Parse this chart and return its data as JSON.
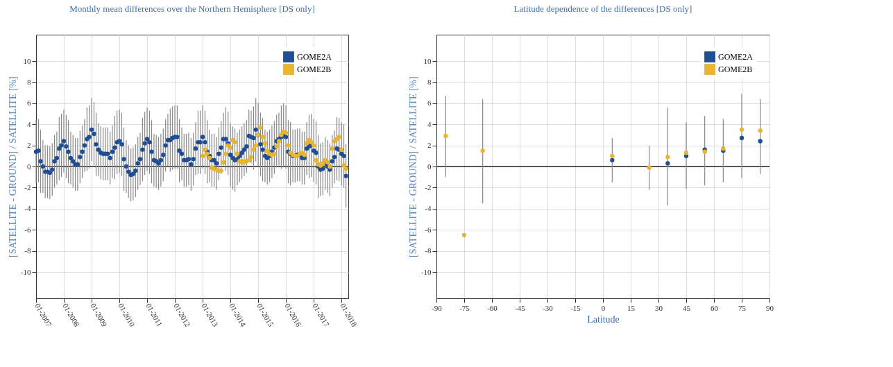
{
  "chart_data": [
    {
      "type": "scatter",
      "title": "Monthly mean differences over the Northern Hemisphere [DS only]",
      "ylabel": "[SATELLITE - GROUND] / SATELLITE [%]",
      "x": [
        "2007-01",
        "2007-02",
        "2007-03",
        "2007-04",
        "2007-05",
        "2007-06",
        "2007-07",
        "2007-08",
        "2007-09",
        "2007-10",
        "2007-11",
        "2007-12",
        "2008-01",
        "2008-02",
        "2008-03",
        "2008-04",
        "2008-05",
        "2008-06",
        "2008-07",
        "2008-08",
        "2008-09",
        "2008-10",
        "2008-11",
        "2008-12",
        "2009-01",
        "2009-02",
        "2009-03",
        "2009-04",
        "2009-05",
        "2009-06",
        "2009-07",
        "2009-08",
        "2009-09",
        "2009-10",
        "2009-11",
        "2009-12",
        "2010-01",
        "2010-02",
        "2010-03",
        "2010-04",
        "2010-05",
        "2010-06",
        "2010-07",
        "2010-08",
        "2010-09",
        "2010-10",
        "2010-11",
        "2010-12",
        "2011-01",
        "2011-02",
        "2011-03",
        "2011-04",
        "2011-05",
        "2011-06",
        "2011-07",
        "2011-08",
        "2011-09",
        "2011-10",
        "2011-11",
        "2011-12",
        "2012-01",
        "2012-02",
        "2012-03",
        "2012-04",
        "2012-05",
        "2012-06",
        "2012-07",
        "2012-08",
        "2012-09",
        "2012-10",
        "2012-11",
        "2012-12",
        "2013-01",
        "2013-02",
        "2013-03",
        "2013-04",
        "2013-05",
        "2013-06",
        "2013-07",
        "2013-08",
        "2013-09",
        "2013-10",
        "2013-11",
        "2013-12",
        "2014-01",
        "2014-02",
        "2014-03",
        "2014-04",
        "2014-05",
        "2014-06",
        "2014-07",
        "2014-08",
        "2014-09",
        "2014-10",
        "2014-11",
        "2014-12",
        "2015-01",
        "2015-02",
        "2015-03",
        "2015-04",
        "2015-05",
        "2015-06",
        "2015-07",
        "2015-08",
        "2015-09",
        "2015-10",
        "2015-11",
        "2015-12",
        "2016-01",
        "2016-02",
        "2016-03",
        "2016-04",
        "2016-05",
        "2016-06",
        "2016-07",
        "2016-08",
        "2016-09",
        "2016-10",
        "2016-11",
        "2016-12",
        "2017-01",
        "2017-02",
        "2017-03",
        "2017-04",
        "2017-05",
        "2017-06",
        "2017-07",
        "2017-08",
        "2017-09",
        "2017-10",
        "2017-11",
        "2017-12",
        "2018-01",
        "2018-02",
        "2018-03"
      ],
      "series": [
        {
          "name": "GOME2A",
          "color": "#1f4e96",
          "values": [
            1.4,
            1.5,
            0.5,
            0.0,
            -0.5,
            -0.5,
            -0.6,
            -0.3,
            0.5,
            0.8,
            1.7,
            2.0,
            2.4,
            1.9,
            1.4,
            0.8,
            0.5,
            0.2,
            0.2,
            0.9,
            1.4,
            2.0,
            2.6,
            2.8,
            3.5,
            3.1,
            2.1,
            1.6,
            1.3,
            1.2,
            1.2,
            1.2,
            0.8,
            1.4,
            1.8,
            2.3,
            2.4,
            2.1,
            0.7,
            0.0,
            -0.5,
            -0.8,
            -0.7,
            -0.4,
            0.3,
            0.7,
            1.6,
            2.2,
            2.6,
            2.3,
            1.4,
            0.6,
            0.5,
            0.3,
            0.6,
            1.1,
            2.0,
            2.5,
            2.5,
            2.7,
            2.8,
            2.8,
            1.5,
            1.2,
            0.6,
            0.6,
            0.7,
            0.2,
            0.7,
            1.7,
            2.3,
            2.3,
            2.8,
            2.3,
            1.4,
            1.0,
            0.6,
            0.6,
            0.3,
            1.2,
            1.8,
            2.6,
            2.6,
            2.2,
            1.1,
            0.8,
            0.6,
            0.7,
            1.0,
            1.3,
            1.6,
            1.9,
            2.9,
            2.8,
            2.7,
            3.5,
            3.0,
            2.1,
            1.6,
            1.0,
            0.8,
            1.0,
            1.4,
            1.8,
            2.4,
            2.6,
            2.8,
            3.0,
            2.8,
            1.4,
            1.2,
            1.0,
            1.0,
            1.1,
            1.1,
            0.8,
            0.8,
            1.7,
            1.9,
            2.0,
            1.5,
            1.3,
            0.0,
            -0.3,
            -0.2,
            0.3,
            0.0,
            -0.3,
            0.5,
            0.9,
            1.7,
            1.6,
            1.2,
            1.0,
            -0.9
          ],
          "errors": [
            3,
            3,
            3,
            2.5,
            2.5,
            2.5,
            2.5,
            2.5,
            2.5,
            2.5,
            3,
            3,
            3,
            3,
            3,
            2.5,
            2.5,
            2.5,
            2.5,
            2.5,
            2.5,
            2.5,
            3,
            3,
            3,
            3,
            3,
            2.5,
            2.5,
            2.5,
            2.5,
            2.5,
            2.5,
            2.5,
            3,
            3,
            3,
            3,
            3,
            2.5,
            2.5,
            2.5,
            2.5,
            2.5,
            2.5,
            2.5,
            3,
            3,
            3,
            3,
            3,
            2.5,
            2.5,
            2.5,
            2.5,
            2.5,
            2.5,
            2.5,
            3,
            3,
            3,
            3,
            3,
            2.5,
            2.5,
            2.5,
            2.5,
            2.5,
            2.5,
            2.5,
            3,
            3,
            3,
            3,
            3,
            2.5,
            2.5,
            2.5,
            2.5,
            2.5,
            2.5,
            2.5,
            3,
            3,
            3,
            3,
            3,
            2.5,
            2.5,
            2.5,
            2.5,
            2.5,
            2.5,
            2.5,
            3,
            3,
            3,
            3,
            3,
            2.5,
            2.5,
            2.5,
            2.5,
            2.5,
            2.5,
            2.5,
            3,
            3,
            3,
            3,
            3,
            2.5,
            2.5,
            2.5,
            2.5,
            2.5,
            2.5,
            2.5,
            3,
            3,
            3,
            3,
            3,
            2.5,
            2.5,
            2.5,
            2.5,
            2.5,
            2.5,
            2.5,
            3,
            3,
            3,
            3,
            3
          ]
        },
        {
          "name": "GOME2B",
          "color": "#e8b52c",
          "x": [
            "2013-01",
            "2013-02",
            "2013-03",
            "2013-04",
            "2013-05",
            "2013-06",
            "2013-07",
            "2013-08",
            "2013-09",
            "2013-10",
            "2013-11",
            "2013-12",
            "2014-01",
            "2014-02",
            "2014-03",
            "2014-04",
            "2014-05",
            "2014-06",
            "2014-07",
            "2014-08",
            "2014-09",
            "2014-10",
            "2014-11",
            "2014-12",
            "2015-01",
            "2015-02",
            "2015-03",
            "2015-04",
            "2015-05",
            "2015-06",
            "2015-07",
            "2015-08",
            "2015-09",
            "2015-10",
            "2015-11",
            "2015-12",
            "2016-01",
            "2016-02",
            "2016-03",
            "2016-04",
            "2016-05",
            "2016-06",
            "2016-07",
            "2016-08",
            "2016-09",
            "2016-10",
            "2016-11",
            "2016-12",
            "2017-01",
            "2017-02",
            "2017-03",
            "2017-04",
            "2017-05",
            "2017-06",
            "2017-07",
            "2017-08",
            "2017-09",
            "2017-10",
            "2017-11",
            "2017-12",
            "2018-01",
            "2018-02",
            "2018-03"
          ],
          "values": [
            1.0,
            1.6,
            1.2,
            0.8,
            -0.1,
            -0.2,
            -0.3,
            -0.4,
            -0.4,
            0.4,
            1.2,
            2.0,
            1.8,
            2.5,
            2.3,
            1.2,
            0.5,
            0.4,
            0.5,
            0.5,
            0.6,
            0.9,
            1.6,
            2.0,
            3.0,
            3.7,
            2.8,
            2.2,
            1.5,
            1.2,
            1.1,
            1.2,
            1.9,
            2.4,
            3.0,
            3.3,
            3.2,
            2.0,
            1.3,
            1.1,
            1.0,
            1.0,
            1.2,
            1.3,
            1.1,
            2.2,
            2.5,
            2.3,
            2.0,
            0.6,
            0.2,
            0.1,
            0.3,
            0.6,
            0.4,
            0.0,
            1.7,
            2.4,
            2.6,
            2.8,
            1.6,
            0.1,
            -0.2
          ]
        }
      ],
      "xlim": [
        "2007-01",
        "2018-04"
      ],
      "xticks": [
        {
          "value": "2007-01",
          "label": "01-2007"
        },
        {
          "value": "2008-01",
          "label": "01-2008"
        },
        {
          "value": "2009-01",
          "label": "01-2009"
        },
        {
          "value": "2010-01",
          "label": "01-2010"
        },
        {
          "value": "2011-01",
          "label": "01-2011"
        },
        {
          "value": "2012-01",
          "label": "01-2012"
        },
        {
          "value": "2013-01",
          "label": "01-2013"
        },
        {
          "value": "2014-01",
          "label": "01-2014"
        },
        {
          "value": "2015-01",
          "label": "01-2015"
        },
        {
          "value": "2016-01",
          "label": "01-2016"
        },
        {
          "value": "2017-01",
          "label": "01-2017"
        },
        {
          "value": "2018-01",
          "label": "01-2018"
        }
      ],
      "ylim": [
        -12.5,
        12.5
      ],
      "yticks": [
        -10,
        -8,
        -6,
        -4,
        -2,
        0,
        2,
        4,
        6,
        8,
        10
      ],
      "ref_lines": [
        {
          "axis": "y",
          "value": 0
        }
      ],
      "grid": true,
      "legend": "top right",
      "marker": "circle"
    },
    {
      "type": "scatter",
      "title": "Latitude dependence of the differences [DS only]",
      "xlabel": "Latitude",
      "ylabel": "[SATELLITE - GROUND] / SATELLITE [%]",
      "series": [
        {
          "name": "GOME2A",
          "color": "#1f4e96",
          "x": [
            5,
            35,
            45,
            55,
            65,
            75,
            85
          ],
          "values": [
            0.6,
            0.3,
            1.0,
            1.6,
            1.5,
            2.7,
            2.4
          ]
        },
        {
          "name": "GOME2B",
          "color": "#e8b52c",
          "x": [
            -85,
            -75,
            -65,
            5,
            25,
            35,
            45,
            55,
            65,
            75,
            85
          ],
          "values": [
            2.9,
            -6.5,
            1.5,
            1.0,
            -0.1,
            0.9,
            1.3,
            1.4,
            1.7,
            3.5,
            3.4
          ],
          "errors": [
            [
              -1,
              6.7
            ],
            null,
            [
              -3.5,
              6.4
            ],
            [
              -1.5,
              2.7
            ],
            [
              -2.2,
              2.0
            ],
            [
              -3.7,
              5.6
            ],
            [
              -2.1,
              4.2
            ],
            [
              -1.8,
              4.8
            ],
            [
              -1.5,
              4.5
            ],
            [
              -1.1,
              6.9
            ],
            [
              -0.7,
              6.4
            ]
          ]
        }
      ],
      "xlim": [
        -90,
        90
      ],
      "xticks": [
        -90,
        -75,
        -60,
        -45,
        -30,
        -15,
        0,
        15,
        30,
        45,
        60,
        75,
        90
      ],
      "ylim": [
        -12.5,
        12.5
      ],
      "yticks": [
        -10,
        -8,
        -6,
        -4,
        -2,
        0,
        2,
        4,
        6,
        8,
        10
      ],
      "ref_lines": [
        {
          "axis": "y",
          "value": 0
        }
      ],
      "grid": true,
      "legend": "top right",
      "marker": "circle"
    }
  ]
}
